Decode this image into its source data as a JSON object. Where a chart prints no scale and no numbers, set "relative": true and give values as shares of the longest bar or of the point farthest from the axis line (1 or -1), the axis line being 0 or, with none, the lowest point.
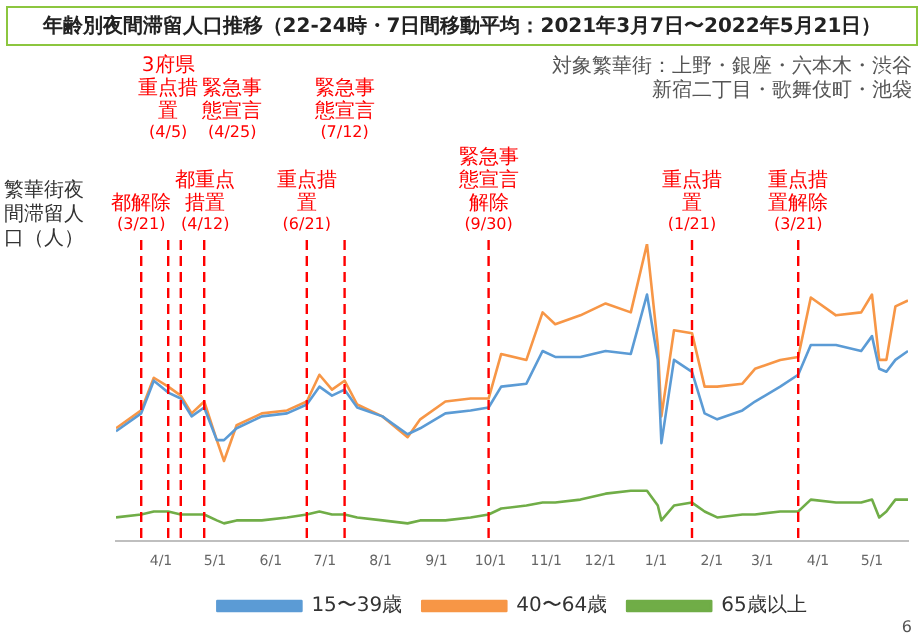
{
  "chart_data": {
    "type": "line",
    "title": "年齢別夜間滞留人口推移（22-24時・7日間移動平均：2021年3月7日〜2022年5月21日）",
    "ylabel": "繁華街夜間滞留人口（人）",
    "relative": true,
    "legend": "bottom",
    "xticks": [
      {
        "value": "2021-04-01",
        "label": "4/1"
      },
      {
        "value": "2021-05-01",
        "label": "5/1"
      },
      {
        "value": "2021-06-01",
        "label": "6/1"
      },
      {
        "value": "2021-07-01",
        "label": "7/1"
      },
      {
        "value": "2021-08-01",
        "label": "8/1"
      },
      {
        "value": "2021-09-01",
        "label": "9/1"
      },
      {
        "value": "2021-10-01",
        "label": "10/1"
      },
      {
        "value": "2021-11-01",
        "label": "11/1"
      },
      {
        "value": "2021-12-01",
        "label": "12/1"
      },
      {
        "value": "2022-01-01",
        "label": "1/1"
      },
      {
        "value": "2022-02-01",
        "label": "2/1"
      },
      {
        "value": "2022-03-01",
        "label": "3/1"
      },
      {
        "value": "2022-04-01",
        "label": "4/1"
      },
      {
        "value": "2022-05-01",
        "label": "5/1"
      }
    ],
    "marker": "none",
    "line_style": "solid",
    "grid": false,
    "xlim": [
      "2021-03-07",
      "2022-05-21"
    ],
    "x": [
      "2021-03-07",
      "2021-03-21",
      "2021-03-28",
      "2021-04-05",
      "2021-04-12",
      "2021-04-18",
      "2021-04-25",
      "2021-05-02",
      "2021-05-06",
      "2021-05-13",
      "2021-05-27",
      "2021-06-10",
      "2021-06-21",
      "2021-06-28",
      "2021-07-05",
      "2021-07-12",
      "2021-07-19",
      "2021-08-02",
      "2021-08-16",
      "2021-08-23",
      "2021-09-06",
      "2021-09-20",
      "2021-09-30",
      "2021-10-07",
      "2021-10-21",
      "2021-10-30",
      "2021-11-06",
      "2021-11-20",
      "2021-12-04",
      "2021-12-18",
      "2021-12-27",
      "2022-01-02",
      "2022-01-04",
      "2022-01-11",
      "2022-01-21",
      "2022-01-28",
      "2022-02-04",
      "2022-02-18",
      "2022-02-25",
      "2022-03-11",
      "2022-03-21",
      "2022-03-28",
      "2022-04-11",
      "2022-04-25",
      "2022-05-01",
      "2022-05-05",
      "2022-05-09",
      "2022-05-14",
      "2022-05-21"
    ],
    "series": [
      {
        "name": "15〜39歳",
        "color": "#5b9bd5",
        "values": [
          0.37,
          0.43,
          0.54,
          0.5,
          0.48,
          0.42,
          0.45,
          0.34,
          0.34,
          0.38,
          0.42,
          0.43,
          0.46,
          0.52,
          0.49,
          0.51,
          0.45,
          0.42,
          0.36,
          0.38,
          0.43,
          0.44,
          0.45,
          0.52,
          0.53,
          0.64,
          0.62,
          0.62,
          0.64,
          0.63,
          0.83,
          0.61,
          0.33,
          0.61,
          0.57,
          0.43,
          0.41,
          0.44,
          0.47,
          0.52,
          0.56,
          0.66,
          0.66,
          0.64,
          0.69,
          0.58,
          0.57,
          0.61,
          0.64
        ]
      },
      {
        "name": "40〜64歳",
        "color": "#f79646",
        "values": [
          0.38,
          0.44,
          0.55,
          0.52,
          0.49,
          0.43,
          0.47,
          0.34,
          0.27,
          0.39,
          0.43,
          0.44,
          0.47,
          0.56,
          0.51,
          0.54,
          0.46,
          0.42,
          0.35,
          0.41,
          0.47,
          0.48,
          0.48,
          0.63,
          0.61,
          0.77,
          0.73,
          0.76,
          0.8,
          0.77,
          1.0,
          0.66,
          0.42,
          0.71,
          0.7,
          0.52,
          0.52,
          0.53,
          0.58,
          0.61,
          0.62,
          0.82,
          0.76,
          0.77,
          0.83,
          0.61,
          0.61,
          0.79,
          0.81
        ]
      },
      {
        "name": "65歳以上",
        "color": "#70ad47",
        "values": [
          0.08,
          0.09,
          0.1,
          0.1,
          0.09,
          0.09,
          0.09,
          0.07,
          0.06,
          0.07,
          0.07,
          0.08,
          0.09,
          0.1,
          0.09,
          0.09,
          0.08,
          0.07,
          0.06,
          0.07,
          0.07,
          0.08,
          0.09,
          0.11,
          0.12,
          0.13,
          0.13,
          0.14,
          0.16,
          0.17,
          0.17,
          0.12,
          0.07,
          0.12,
          0.13,
          0.1,
          0.08,
          0.09,
          0.09,
          0.1,
          0.1,
          0.14,
          0.13,
          0.13,
          0.14,
          0.08,
          0.1,
          0.14,
          0.14
        ]
      }
    ],
    "ref_lines": [
      {
        "axis": "x",
        "value": "2021-03-21",
        "label": "都解除(3/21)",
        "color": "#ff0000",
        "line_style": "dashed"
      },
      {
        "axis": "x",
        "value": "2021-04-05",
        "label": "3府県重点措置(4/5)",
        "color": "#ff0000",
        "line_style": "dashed"
      },
      {
        "axis": "x",
        "value": "2021-04-12",
        "label": "都重点措置(4/12)",
        "color": "#ff0000",
        "line_style": "dashed"
      },
      {
        "axis": "x",
        "value": "2021-04-25",
        "label": "緊急事態宣言(4/25)",
        "color": "#ff0000",
        "line_style": "dashed"
      },
      {
        "axis": "x",
        "value": "2021-06-21",
        "label": "重点措置(6/21)",
        "color": "#ff0000",
        "line_style": "dashed"
      },
      {
        "axis": "x",
        "value": "2021-07-12",
        "label": "緊急事態宣言(7/12)",
        "color": "#ff0000",
        "line_style": "dashed"
      },
      {
        "axis": "x",
        "value": "2021-09-30",
        "label": "緊急事態宣言解除(9/30)",
        "color": "#ff0000",
        "line_style": "dashed"
      },
      {
        "axis": "x",
        "value": "2022-01-21",
        "label": "重点措置(1/21)",
        "color": "#ff0000",
        "line_style": "dashed"
      },
      {
        "axis": "x",
        "value": "2022-03-21",
        "label": "重点措置解除(3/21)",
        "color": "#ff0000",
        "line_style": "dashed"
      }
    ],
    "annotations": [
      "対象繁華街：上野・銀座・六本木・渋谷新宿二丁目・歌舞伎町・池袋",
      "6"
    ]
  }
}
